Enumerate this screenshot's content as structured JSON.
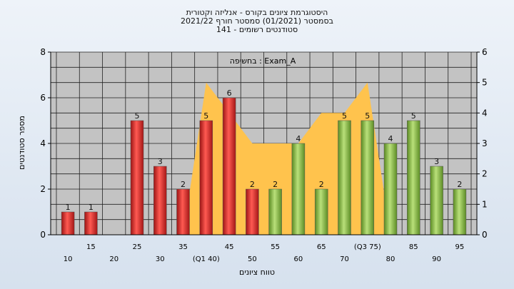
{
  "chart_data": {
    "type": "bar",
    "title_lines": [
      "היסטוגרמת ציונים בקורס - אנליזה וקטורית",
      "בסמסטר  (01/2021)  סמסטר חורף 2021/22",
      "סטודנטים רשומים - 141"
    ],
    "annotation": "בחשיפה : Exam_A",
    "xlabel": "טווח ציונים",
    "ylabel": "מספר סטודנטים",
    "ylim": [
      0,
      8
    ],
    "y_ticks": [
      "0",
      "2",
      "4",
      "6",
      "8"
    ],
    "y2lim": [
      0,
      6
    ],
    "y2_ticks": [
      "0",
      "1",
      "2",
      "3",
      "4",
      "5",
      "6"
    ],
    "categories": [
      "10",
      "15",
      "20",
      "25",
      "30",
      "35",
      "(Q1 40)",
      "45",
      "50",
      "55",
      "60",
      "65",
      "70",
      "(Q3 75)",
      "80",
      "85",
      "90",
      "95"
    ],
    "values": [
      1,
      1,
      0,
      5,
      3,
      2,
      5,
      6,
      2,
      2,
      4,
      2,
      5,
      5,
      4,
      5,
      3,
      2
    ],
    "value_labels": [
      "1",
      "1",
      "",
      "5",
      "3",
      "2",
      "5",
      "6",
      "2",
      "2",
      "4",
      "2",
      "5",
      "5",
      "4",
      "5",
      "3",
      "2"
    ],
    "bar_colors": [
      "red",
      "red",
      "red",
      "red",
      "red",
      "red",
      "red",
      "red",
      "red",
      "green",
      "green",
      "green",
      "green",
      "green",
      "green",
      "green",
      "green",
      "green"
    ],
    "area_series": [
      0,
      0,
      0,
      0,
      0,
      0,
      5,
      4,
      3,
      3,
      3,
      4,
      4,
      5,
      0,
      0,
      0,
      0
    ],
    "grid": true,
    "colors": {
      "red": "#e53935",
      "green": "#8bc34a",
      "area": "#ffc34d",
      "plot_bg": "#c3c3c3",
      "grid": "#222222"
    }
  }
}
